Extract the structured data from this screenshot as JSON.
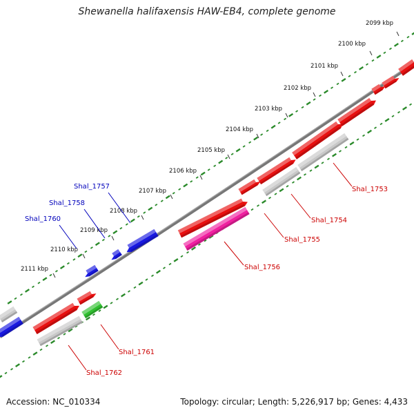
{
  "title": "Shewanella halifaxensis HAW-EB4, complete genome",
  "accession": "Accession: NC_010334",
  "topology": "Topology: circular; Length: 5,226,917 bp; Genes: 4,433",
  "colors": {
    "forward_gene": "#e81010",
    "reverse_gene": "#1818e0",
    "gray_gene": "#c8c8c8",
    "pink_gene": "#f020a0",
    "green_gene": "#30c030",
    "backbone": "#777777",
    "tick_track": "#2a8a2a",
    "label_forward": "#cc0000",
    "label_reverse": "#0000bb"
  },
  "kbp_labels": [
    "2099 kbp",
    "2100 kbp",
    "2101 kbp",
    "2102 kbp",
    "2103 kbp",
    "2104 kbp",
    "2105 kbp",
    "2106 kbp",
    "2107 kbp",
    "2108 kbp",
    "2109 kbp",
    "2110 kbp",
    "2111 kbp"
  ],
  "gene_labels": [
    {
      "text": "Shal_1753",
      "strand": "forward"
    },
    {
      "text": "Shal_1754",
      "strand": "forward"
    },
    {
      "text": "Shal_1755",
      "strand": "forward"
    },
    {
      "text": "Shal_1756",
      "strand": "forward"
    },
    {
      "text": "Shal_1761",
      "strand": "forward"
    },
    {
      "text": "Shal_1762",
      "strand": "forward"
    },
    {
      "text": "Shal_1757",
      "strand": "reverse"
    },
    {
      "text": "Shal_1758",
      "strand": "reverse"
    },
    {
      "text": "Shal_1760",
      "strand": "reverse"
    }
  ]
}
